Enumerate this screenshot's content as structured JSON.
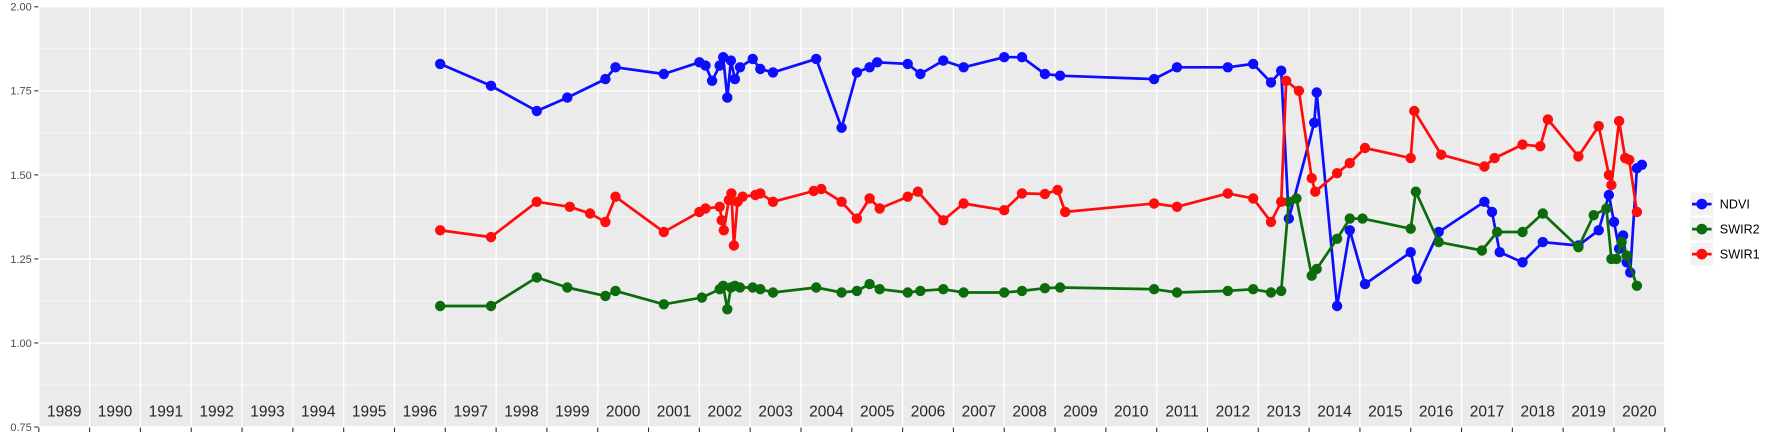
{
  "chart_data": {
    "type": "line",
    "title": "",
    "xlabel": "",
    "ylabel": "",
    "xlim": [
      1988.5,
      2020.5
    ],
    "ylim": [
      0.75,
      2.0
    ],
    "x_ticks": [
      1989,
      1990,
      1991,
      1992,
      1993,
      1994,
      1995,
      1996,
      1997,
      1998,
      1999,
      2000,
      2001,
      2002,
      2003,
      2004,
      2005,
      2006,
      2007,
      2008,
      2009,
      2010,
      2011,
      2012,
      2013,
      2014,
      2015,
      2016,
      2017,
      2018,
      2019,
      2020
    ],
    "y_ticks": [
      2.0,
      1.75,
      1.5,
      1.25,
      1.0,
      0.75
    ],
    "y_tick_labels": [
      "2.00",
      "1.75",
      "1.50",
      "1.25",
      "1.00",
      "0.75"
    ],
    "y_minor_ticks": [
      1.875,
      1.625,
      1.375,
      1.125,
      0.875
    ],
    "grid": true,
    "legend_position": "right",
    "legend_entries": [
      "NDVI",
      "SWIR2",
      "SWIR1"
    ],
    "series": [
      {
        "name": "NDVI",
        "color": "#0D0DFF",
        "points": [
          [
            1996.4,
            1.83
          ],
          [
            1997.4,
            1.765
          ],
          [
            1998.3,
            1.69
          ],
          [
            1998.9,
            1.73
          ],
          [
            1999.65,
            1.785
          ],
          [
            1999.85,
            1.82
          ],
          [
            2000.8,
            1.8
          ],
          [
            2001.5,
            1.835
          ],
          [
            2001.62,
            1.825
          ],
          [
            2001.75,
            1.78
          ],
          [
            2001.9,
            1.825
          ],
          [
            2001.97,
            1.85
          ],
          [
            2002.05,
            1.73
          ],
          [
            2002.12,
            1.84
          ],
          [
            2002.2,
            1.785
          ],
          [
            2002.3,
            1.82
          ],
          [
            2002.55,
            1.845
          ],
          [
            2002.7,
            1.815
          ],
          [
            2002.95,
            1.805
          ],
          [
            2003.8,
            1.845
          ],
          [
            2004.3,
            1.64
          ],
          [
            2004.6,
            1.805
          ],
          [
            2004.85,
            1.82
          ],
          [
            2005.0,
            1.835
          ],
          [
            2005.6,
            1.83
          ],
          [
            2005.85,
            1.8
          ],
          [
            2006.3,
            1.84
          ],
          [
            2006.7,
            1.82
          ],
          [
            2007.5,
            1.85
          ],
          [
            2007.85,
            1.85
          ],
          [
            2008.3,
            1.8
          ],
          [
            2008.6,
            1.795
          ],
          [
            2010.45,
            1.785
          ],
          [
            2010.9,
            1.82
          ],
          [
            2011.9,
            1.82
          ],
          [
            2012.4,
            1.83
          ],
          [
            2012.75,
            1.775
          ],
          [
            2012.95,
            1.81
          ],
          [
            2013.1,
            1.37
          ],
          [
            2013.6,
            1.655
          ],
          [
            2013.65,
            1.745
          ],
          [
            2014.05,
            1.11
          ],
          [
            2014.3,
            1.335
          ],
          [
            2014.6,
            1.175
          ],
          [
            2015.5,
            1.27
          ],
          [
            2015.62,
            1.19
          ],
          [
            2016.05,
            1.33
          ],
          [
            2016.95,
            1.42
          ],
          [
            2017.1,
            1.39
          ],
          [
            2017.25,
            1.27
          ],
          [
            2017.7,
            1.24
          ],
          [
            2018.1,
            1.3
          ],
          [
            2018.8,
            1.29
          ],
          [
            2019.2,
            1.335
          ],
          [
            2019.4,
            1.44
          ],
          [
            2019.5,
            1.36
          ],
          [
            2019.6,
            1.28
          ],
          [
            2019.68,
            1.32
          ],
          [
            2019.75,
            1.24
          ],
          [
            2019.82,
            1.21
          ],
          [
            2019.95,
            1.52
          ],
          [
            2020.05,
            1.53
          ]
        ]
      },
      {
        "name": "SWIR2",
        "color": "#0C6C0C",
        "points": [
          [
            1996.4,
            1.11
          ],
          [
            1997.4,
            1.11
          ],
          [
            1998.3,
            1.195
          ],
          [
            1998.9,
            1.165
          ],
          [
            1999.65,
            1.14
          ],
          [
            1999.85,
            1.155
          ],
          [
            2000.8,
            1.115
          ],
          [
            2001.55,
            1.135
          ],
          [
            2001.9,
            1.16
          ],
          [
            2001.97,
            1.17
          ],
          [
            2002.05,
            1.1
          ],
          [
            2002.12,
            1.165
          ],
          [
            2002.2,
            1.17
          ],
          [
            2002.3,
            1.165
          ],
          [
            2002.55,
            1.165
          ],
          [
            2002.7,
            1.16
          ],
          [
            2002.95,
            1.15
          ],
          [
            2003.8,
            1.165
          ],
          [
            2004.3,
            1.15
          ],
          [
            2004.6,
            1.155
          ],
          [
            2004.85,
            1.175
          ],
          [
            2005.05,
            1.16
          ],
          [
            2005.6,
            1.15
          ],
          [
            2005.85,
            1.155
          ],
          [
            2006.3,
            1.16
          ],
          [
            2006.7,
            1.15
          ],
          [
            2007.5,
            1.15
          ],
          [
            2007.85,
            1.155
          ],
          [
            2008.3,
            1.163
          ],
          [
            2008.6,
            1.165
          ],
          [
            2010.45,
            1.16
          ],
          [
            2010.9,
            1.15
          ],
          [
            2011.9,
            1.155
          ],
          [
            2012.4,
            1.16
          ],
          [
            2012.75,
            1.15
          ],
          [
            2012.95,
            1.155
          ],
          [
            2013.1,
            1.42
          ],
          [
            2013.25,
            1.43
          ],
          [
            2013.55,
            1.2
          ],
          [
            2013.65,
            1.22
          ],
          [
            2014.05,
            1.31
          ],
          [
            2014.3,
            1.37
          ],
          [
            2014.55,
            1.37
          ],
          [
            2015.5,
            1.34
          ],
          [
            2015.6,
            1.45
          ],
          [
            2016.05,
            1.3
          ],
          [
            2016.9,
            1.275
          ],
          [
            2017.2,
            1.33
          ],
          [
            2017.7,
            1.33
          ],
          [
            2018.1,
            1.385
          ],
          [
            2018.8,
            1.285
          ],
          [
            2019.1,
            1.38
          ],
          [
            2019.35,
            1.4
          ],
          [
            2019.45,
            1.25
          ],
          [
            2019.55,
            1.25
          ],
          [
            2019.65,
            1.3
          ],
          [
            2019.75,
            1.26
          ],
          [
            2019.95,
            1.17
          ]
        ]
      },
      {
        "name": "SWIR1",
        "color": "#FF0D0D",
        "points": [
          [
            1996.4,
            1.335
          ],
          [
            1997.4,
            1.315
          ],
          [
            1998.3,
            1.42
          ],
          [
            1998.95,
            1.405
          ],
          [
            1999.35,
            1.385
          ],
          [
            1999.65,
            1.36
          ],
          [
            1999.85,
            1.435
          ],
          [
            2000.8,
            1.33
          ],
          [
            2001.5,
            1.39
          ],
          [
            2001.62,
            1.4
          ],
          [
            2001.9,
            1.405
          ],
          [
            2001.94,
            1.365
          ],
          [
            2001.98,
            1.335
          ],
          [
            2002.08,
            1.425
          ],
          [
            2002.13,
            1.445
          ],
          [
            2002.18,
            1.29
          ],
          [
            2002.25,
            1.42
          ],
          [
            2002.35,
            1.435
          ],
          [
            2002.6,
            1.44
          ],
          [
            2002.7,
            1.445
          ],
          [
            2002.95,
            1.42
          ],
          [
            2003.75,
            1.452
          ],
          [
            2003.9,
            1.458
          ],
          [
            2004.3,
            1.42
          ],
          [
            2004.6,
            1.37
          ],
          [
            2004.85,
            1.43
          ],
          [
            2005.05,
            1.4
          ],
          [
            2005.6,
            1.435
          ],
          [
            2005.8,
            1.45
          ],
          [
            2006.3,
            1.365
          ],
          [
            2006.7,
            1.415
          ],
          [
            2007.5,
            1.395
          ],
          [
            2007.85,
            1.445
          ],
          [
            2008.3,
            1.443
          ],
          [
            2008.55,
            1.455
          ],
          [
            2008.7,
            1.39
          ],
          [
            2010.45,
            1.415
          ],
          [
            2010.9,
            1.405
          ],
          [
            2011.9,
            1.445
          ],
          [
            2012.4,
            1.43
          ],
          [
            2012.75,
            1.36
          ],
          [
            2012.95,
            1.42
          ],
          [
            2013.05,
            1.78
          ],
          [
            2013.3,
            1.75
          ],
          [
            2013.55,
            1.49
          ],
          [
            2013.62,
            1.45
          ],
          [
            2014.05,
            1.505
          ],
          [
            2014.3,
            1.535
          ],
          [
            2014.6,
            1.58
          ],
          [
            2015.5,
            1.55
          ],
          [
            2015.57,
            1.69
          ],
          [
            2016.1,
            1.56
          ],
          [
            2016.95,
            1.525
          ],
          [
            2017.15,
            1.55
          ],
          [
            2017.7,
            1.59
          ],
          [
            2018.05,
            1.585
          ],
          [
            2018.2,
            1.665
          ],
          [
            2018.8,
            1.555
          ],
          [
            2019.2,
            1.645
          ],
          [
            2019.4,
            1.5
          ],
          [
            2019.45,
            1.47
          ],
          [
            2019.6,
            1.66
          ],
          [
            2019.72,
            1.55
          ],
          [
            2019.8,
            1.545
          ],
          [
            2019.95,
            1.39
          ]
        ]
      }
    ]
  },
  "style": {
    "panel_bg": "#EBEBEB",
    "grid_major_color": "#FFFFFF",
    "grid_minor_color": "#FFFFFF",
    "tick_color": "#333333",
    "y_label_color": "#4D4D4D",
    "x_label_color": "#262626",
    "legend_key_bg": "#F2F2F2",
    "legend_text_color": "#000000"
  }
}
